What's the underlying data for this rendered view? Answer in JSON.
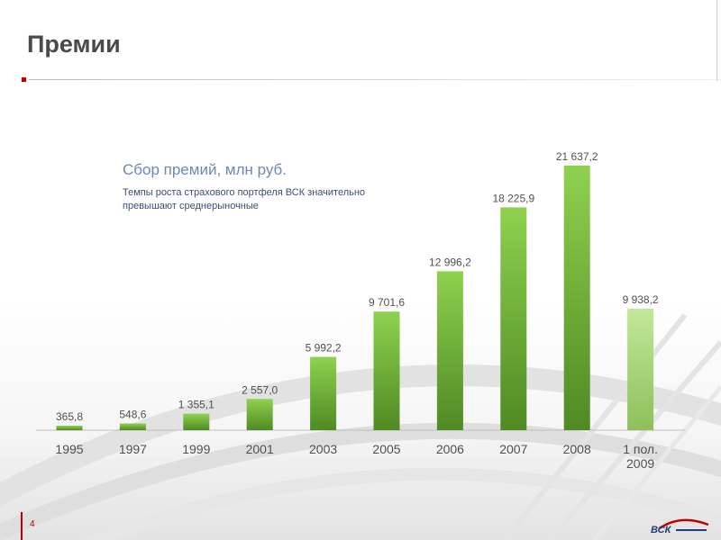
{
  "page": {
    "title": "Премии",
    "subtitle": "Сбор премий, млн руб.",
    "description": "Темпы роста страхового портфеля ВСК значительно превышают среднерыночные",
    "page_number": "4",
    "logo_text": "ВСК"
  },
  "colors": {
    "accent_red": "#c00000",
    "bar_top": "#8fd14f",
    "bar_bottom": "#4f8a23",
    "bar_highlight_top": "#c2e89a",
    "bar_highlight_bottom": "#8ebf5c",
    "title_text": "#4a4a4a",
    "subtitle_text": "#6f87b2",
    "label_text": "#505050"
  },
  "chart_data": {
    "type": "bar",
    "title": "",
    "xlabel": "",
    "ylabel": "",
    "categories": [
      "1995",
      "1997",
      "1999",
      "2001",
      "2003",
      "2005",
      "2006",
      "2007",
      "2008",
      "1 пол. 2009"
    ],
    "values": [
      365.8,
      548.6,
      1355.1,
      2557.0,
      5992.2,
      9701.6,
      12996.2,
      18225.9,
      21637.2,
      9938.2
    ],
    "value_labels": [
      "365,8",
      "548,6",
      "1 355,1",
      "2 557,0",
      "5 992,2",
      "9 701,6",
      "12 996,2",
      "18 225,9",
      "21 637,2",
      "9 938,2"
    ],
    "highlighted_index": 9,
    "grid": false,
    "legend": "none"
  }
}
